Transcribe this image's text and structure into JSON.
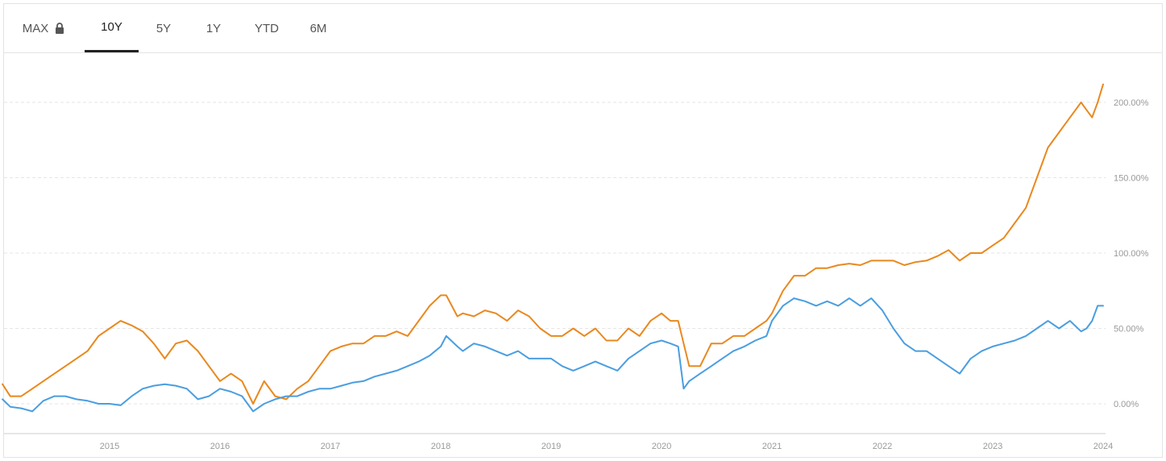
{
  "tabs": [
    {
      "label": "MAX",
      "locked": true,
      "active": false
    },
    {
      "label": "10Y",
      "locked": false,
      "active": true
    },
    {
      "label": "5Y",
      "locked": false,
      "active": false
    },
    {
      "label": "1Y",
      "locked": false,
      "active": false
    },
    {
      "label": "YTD",
      "locked": false,
      "active": false
    },
    {
      "label": "6M",
      "locked": false,
      "active": false
    }
  ],
  "colors": {
    "orange": "#e8891f",
    "blue": "#4a9ee0",
    "grid": "#e6e6e6",
    "axis_text": "#999999"
  },
  "chart_data": {
    "type": "line",
    "title": "",
    "xlabel": "",
    "ylabel": "",
    "x_ticks": [
      "2015",
      "2016",
      "2017",
      "2018",
      "2019",
      "2020",
      "2021",
      "2022",
      "2023",
      "2024"
    ],
    "y_ticks": [
      "0.00%",
      "50.00%",
      "100.00%",
      "150.00%",
      "200.00%"
    ],
    "y_tick_values": [
      0,
      50,
      100,
      150,
      200
    ],
    "xlim": [
      2014.03,
      2024.0
    ],
    "ylim": [
      -20,
      230
    ],
    "grid": true,
    "legend": "none",
    "series": [
      {
        "color": "#e8891f",
        "x": [
          2014.03,
          2014.1,
          2014.2,
          2014.3,
          2014.4,
          2014.5,
          2014.6,
          2014.7,
          2014.8,
          2014.9,
          2015.0,
          2015.1,
          2015.2,
          2015.3,
          2015.4,
          2015.5,
          2015.6,
          2015.7,
          2015.8,
          2015.9,
          2016.0,
          2016.1,
          2016.2,
          2016.3,
          2016.4,
          2016.5,
          2016.6,
          2016.7,
          2016.8,
          2016.9,
          2017.0,
          2017.1,
          2017.2,
          2017.3,
          2017.4,
          2017.5,
          2017.6,
          2017.7,
          2017.8,
          2017.9,
          2018.0,
          2018.05,
          2018.15,
          2018.2,
          2018.3,
          2018.4,
          2018.5,
          2018.6,
          2018.7,
          2018.8,
          2018.9,
          2019.0,
          2019.1,
          2019.2,
          2019.3,
          2019.4,
          2019.5,
          2019.6,
          2019.7,
          2019.8,
          2019.9,
          2020.0,
          2020.08,
          2020.15,
          2020.2,
          2020.25,
          2020.35,
          2020.45,
          2020.55,
          2020.65,
          2020.75,
          2020.85,
          2020.95,
          2021.0,
          2021.1,
          2021.2,
          2021.3,
          2021.4,
          2021.5,
          2021.6,
          2021.7,
          2021.8,
          2021.9,
          2022.0,
          2022.1,
          2022.2,
          2022.3,
          2022.4,
          2022.5,
          2022.6,
          2022.7,
          2022.8,
          2022.9,
          2023.0,
          2023.1,
          2023.2,
          2023.3,
          2023.4,
          2023.5,
          2023.6,
          2023.7,
          2023.8,
          2023.85,
          2023.9,
          2023.95,
          2024.0
        ],
        "values": [
          13,
          5,
          5,
          10,
          15,
          20,
          25,
          30,
          35,
          45,
          50,
          55,
          52,
          48,
          40,
          30,
          40,
          42,
          35,
          25,
          15,
          20,
          15,
          0,
          15,
          5,
          3,
          10,
          15,
          25,
          35,
          38,
          40,
          40,
          45,
          45,
          48,
          45,
          55,
          65,
          72,
          72,
          58,
          60,
          58,
          62,
          60,
          55,
          62,
          58,
          50,
          45,
          45,
          50,
          45,
          50,
          42,
          42,
          50,
          45,
          55,
          60,
          55,
          55,
          40,
          25,
          25,
          40,
          40,
          45,
          45,
          50,
          55,
          60,
          75,
          85,
          85,
          90,
          90,
          92,
          93,
          92,
          95,
          95,
          95,
          92,
          94,
          95,
          98,
          102,
          95,
          100,
          100,
          105,
          110,
          120,
          130,
          150,
          170,
          180,
          190,
          200,
          195,
          190,
          200,
          212
        ]
      },
      {
        "color": "#4a9ee0",
        "x": [
          2014.03,
          2014.1,
          2014.2,
          2014.3,
          2014.4,
          2014.5,
          2014.6,
          2014.7,
          2014.8,
          2014.9,
          2015.0,
          2015.1,
          2015.2,
          2015.3,
          2015.4,
          2015.5,
          2015.6,
          2015.7,
          2015.8,
          2015.9,
          2016.0,
          2016.1,
          2016.2,
          2016.3,
          2016.4,
          2016.5,
          2016.6,
          2016.7,
          2016.8,
          2016.9,
          2017.0,
          2017.1,
          2017.2,
          2017.3,
          2017.4,
          2017.5,
          2017.6,
          2017.7,
          2017.8,
          2017.9,
          2018.0,
          2018.05,
          2018.15,
          2018.2,
          2018.3,
          2018.4,
          2018.5,
          2018.6,
          2018.7,
          2018.8,
          2018.9,
          2019.0,
          2019.1,
          2019.2,
          2019.3,
          2019.4,
          2019.5,
          2019.6,
          2019.7,
          2019.8,
          2019.9,
          2020.0,
          2020.08,
          2020.15,
          2020.2,
          2020.25,
          2020.35,
          2020.45,
          2020.55,
          2020.65,
          2020.75,
          2020.85,
          2020.95,
          2021.0,
          2021.1,
          2021.2,
          2021.3,
          2021.4,
          2021.5,
          2021.6,
          2021.7,
          2021.8,
          2021.9,
          2022.0,
          2022.1,
          2022.2,
          2022.3,
          2022.4,
          2022.5,
          2022.6,
          2022.7,
          2022.8,
          2022.9,
          2023.0,
          2023.1,
          2023.2,
          2023.3,
          2023.4,
          2023.5,
          2023.6,
          2023.7,
          2023.8,
          2023.85,
          2023.9,
          2023.95,
          2024.0
        ],
        "values": [
          3,
          -2,
          -3,
          -5,
          2,
          5,
          5,
          3,
          2,
          0,
          0,
          -1,
          5,
          10,
          12,
          13,
          12,
          10,
          3,
          5,
          10,
          8,
          5,
          -5,
          0,
          3,
          5,
          5,
          8,
          10,
          10,
          12,
          14,
          15,
          18,
          20,
          22,
          25,
          28,
          32,
          38,
          45,
          38,
          35,
          40,
          38,
          35,
          32,
          35,
          30,
          30,
          30,
          25,
          22,
          25,
          28,
          25,
          22,
          30,
          35,
          40,
          42,
          40,
          38,
          10,
          15,
          20,
          25,
          30,
          35,
          38,
          42,
          45,
          55,
          65,
          70,
          68,
          65,
          68,
          65,
          70,
          65,
          70,
          62,
          50,
          40,
          35,
          35,
          30,
          25,
          20,
          30,
          35,
          38,
          40,
          42,
          45,
          50,
          55,
          50,
          55,
          48,
          50,
          55,
          65,
          65
        ]
      }
    ]
  }
}
